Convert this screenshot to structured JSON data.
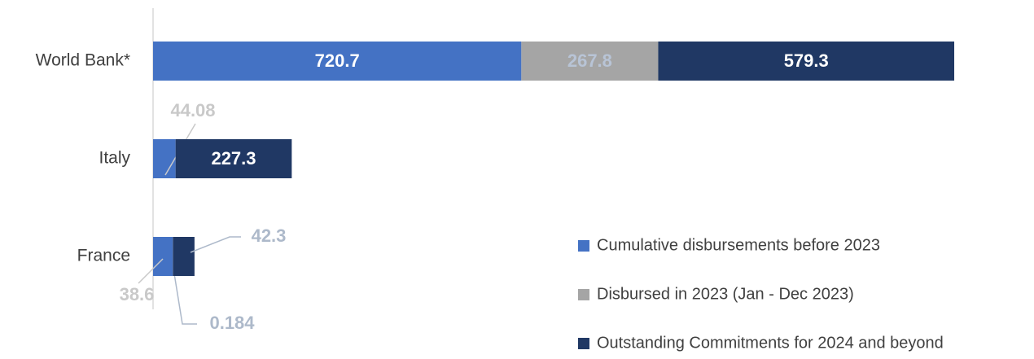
{
  "chart_data": {
    "type": "bar",
    "orientation": "horizontal",
    "stacked": true,
    "categories": [
      "World Bank*",
      "Italy",
      "France"
    ],
    "series": [
      {
        "name": "Cumulative disbursements before 2023",
        "color": "#4472c4",
        "values": [
          720.7,
          44.08,
          38.6
        ]
      },
      {
        "name": "Disbursed in 2023 (Jan - Dec 2023)",
        "color": "#a5a5a5",
        "values": [
          267.8,
          null,
          0.184
        ]
      },
      {
        "name": "Outstanding Commitments for 2024 and beyond",
        "color": "#203864",
        "values": [
          579.3,
          227.3,
          42.3
        ]
      }
    ],
    "xlim": [
      0,
      1700
    ]
  }
}
